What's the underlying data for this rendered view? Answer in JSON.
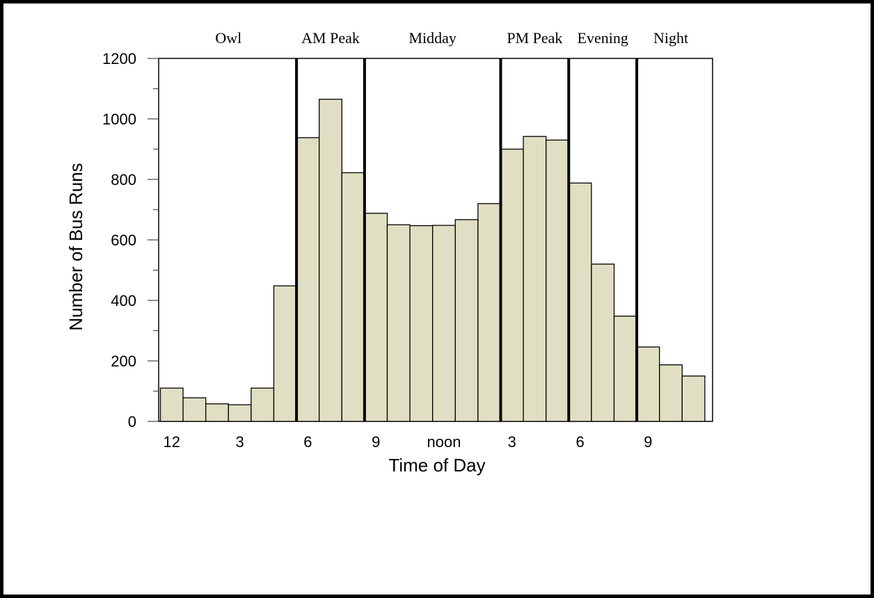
{
  "chart_data": {
    "type": "bar",
    "xlabel": "Time of Day",
    "ylabel": "Number of Bus Runs",
    "ylim": [
      0,
      1200
    ],
    "y_ticks": [
      0,
      200,
      400,
      600,
      800,
      1000,
      1200
    ],
    "hours": [
      0,
      1,
      2,
      3,
      4,
      5,
      6,
      7,
      8,
      9,
      10,
      11,
      12,
      13,
      14,
      15,
      16,
      17,
      18,
      19,
      20,
      21,
      22,
      23
    ],
    "values": [
      110,
      78,
      58,
      55,
      110,
      448,
      938,
      1065,
      822,
      688,
      650,
      647,
      648,
      667,
      720,
      900,
      942,
      930,
      788,
      520,
      348,
      246,
      187,
      150
    ],
    "x_tick_labels": [
      {
        "hour": 0,
        "label": "12"
      },
      {
        "hour": 3,
        "label": "3"
      },
      {
        "hour": 6,
        "label": "6"
      },
      {
        "hour": 9,
        "label": "9"
      },
      {
        "hour": 12,
        "label": "noon"
      },
      {
        "hour": 15,
        "label": "3"
      },
      {
        "hour": 18,
        "label": "6"
      },
      {
        "hour": 21,
        "label": "9"
      }
    ],
    "periods": [
      {
        "label": "Owl",
        "start": 0,
        "end": 6
      },
      {
        "label": "AM Peak",
        "start": 6,
        "end": 9
      },
      {
        "label": "Midday",
        "start": 9,
        "end": 15
      },
      {
        "label": "PM Peak",
        "start": 15,
        "end": 18
      },
      {
        "label": "Evening",
        "start": 18,
        "end": 21
      },
      {
        "label": "Night",
        "start": 21,
        "end": 24
      }
    ],
    "period_boundaries": [
      6,
      9,
      15,
      18,
      21
    ],
    "bar_color": "#e1dfc3"
  }
}
